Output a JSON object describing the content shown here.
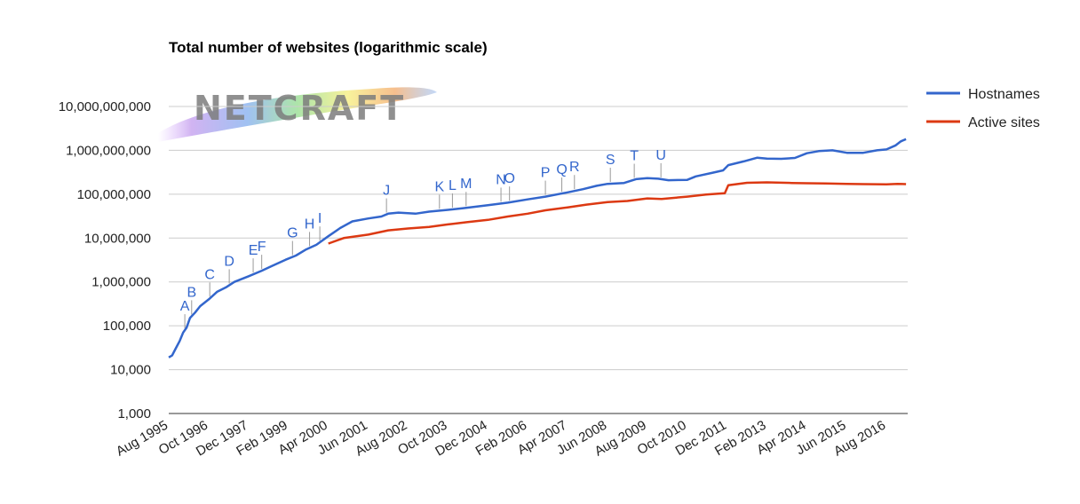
{
  "chart_data": {
    "type": "line",
    "title": "Total number of websites (logarithmic scale)",
    "scale": "log",
    "ylim": [
      1000,
      10000000000
    ],
    "y_ticks": [
      {
        "value": 1000,
        "label": "1,000"
      },
      {
        "value": 10000,
        "label": "10,000"
      },
      {
        "value": 100000,
        "label": "100,000"
      },
      {
        "value": 1000000,
        "label": "1,000,000"
      },
      {
        "value": 10000000,
        "label": "10,000,000"
      },
      {
        "value": 100000000,
        "label": "100,000,000"
      },
      {
        "value": 1000000000,
        "label": "1,000,000,000"
      },
      {
        "value": 10000000000,
        "label": "10,000,000,000"
      }
    ],
    "x_range": [
      1995.58,
      2017.2
    ],
    "x_ticks": [
      {
        "value": 1995.58,
        "label": "Aug 1995"
      },
      {
        "value": 1996.75,
        "label": "Oct 1996"
      },
      {
        "value": 1997.92,
        "label": "Dec 1997"
      },
      {
        "value": 1999.08,
        "label": "Feb 1999"
      },
      {
        "value": 2000.25,
        "label": "Apr 2000"
      },
      {
        "value": 2001.42,
        "label": "Jun 2001"
      },
      {
        "value": 2002.58,
        "label": "Aug 2002"
      },
      {
        "value": 2003.75,
        "label": "Oct 2003"
      },
      {
        "value": 2004.92,
        "label": "Dec 2004"
      },
      {
        "value": 2006.08,
        "label": "Feb 2006"
      },
      {
        "value": 2007.25,
        "label": "Apr 2007"
      },
      {
        "value": 2008.42,
        "label": "Jun 2008"
      },
      {
        "value": 2009.58,
        "label": "Aug 2009"
      },
      {
        "value": 2010.75,
        "label": "Oct 2010"
      },
      {
        "value": 2011.92,
        "label": "Dec 2011"
      },
      {
        "value": 2013.08,
        "label": "Feb 2013"
      },
      {
        "value": 2014.25,
        "label": "Apr 2014"
      },
      {
        "value": 2015.42,
        "label": "Jun 2015"
      },
      {
        "value": 2016.58,
        "label": "Aug 2016"
      }
    ],
    "grid": true,
    "legend_position": "right",
    "watermark": "NETCRAFT",
    "series": [
      {
        "name": "Hostnames",
        "color": "#3366cc",
        "points": [
          [
            1995.58,
            19000
          ],
          [
            1995.68,
            21000
          ],
          [
            1995.78,
            30000
          ],
          [
            1995.9,
            45000
          ],
          [
            1996.0,
            70000
          ],
          [
            1996.1,
            90000
          ],
          [
            1996.2,
            150000
          ],
          [
            1996.35,
            200000
          ],
          [
            1996.5,
            280000
          ],
          [
            1996.75,
            400000
          ],
          [
            1997.0,
            600000
          ],
          [
            1997.25,
            750000
          ],
          [
            1997.5,
            1000000
          ],
          [
            1997.92,
            1350000
          ],
          [
            1998.3,
            1800000
          ],
          [
            1998.6,
            2300000
          ],
          [
            1999.0,
            3200000
          ],
          [
            1999.3,
            4000000
          ],
          [
            1999.6,
            5500000
          ],
          [
            1999.9,
            7000000
          ],
          [
            2000.25,
            11000000
          ],
          [
            2000.6,
            17000000
          ],
          [
            2000.95,
            24000000
          ],
          [
            2001.42,
            28000000
          ],
          [
            2001.8,
            31000000
          ],
          [
            2002.0,
            36000000
          ],
          [
            2002.3,
            38000000
          ],
          [
            2002.8,
            36000000
          ],
          [
            2003.2,
            40000000
          ],
          [
            2003.75,
            44000000
          ],
          [
            2004.2,
            48000000
          ],
          [
            2004.92,
            56000000
          ],
          [
            2005.5,
            64000000
          ],
          [
            2006.08,
            76000000
          ],
          [
            2006.6,
            88000000
          ],
          [
            2007.25,
            110000000
          ],
          [
            2007.7,
            130000000
          ],
          [
            2008.1,
            155000000
          ],
          [
            2008.42,
            172000000
          ],
          [
            2008.9,
            180000000
          ],
          [
            2009.25,
            220000000
          ],
          [
            2009.58,
            232000000
          ],
          [
            2009.9,
            225000000
          ],
          [
            2010.2,
            208000000
          ],
          [
            2010.75,
            212000000
          ],
          [
            2011.0,
            255000000
          ],
          [
            2011.5,
            310000000
          ],
          [
            2011.8,
            350000000
          ],
          [
            2011.95,
            460000000
          ],
          [
            2012.4,
            560000000
          ],
          [
            2012.8,
            680000000
          ],
          [
            2013.08,
            650000000
          ],
          [
            2013.5,
            640000000
          ],
          [
            2013.9,
            670000000
          ],
          [
            2014.25,
            860000000
          ],
          [
            2014.6,
            960000000
          ],
          [
            2015.0,
            1000000000
          ],
          [
            2015.42,
            880000000
          ],
          [
            2015.9,
            880000000
          ],
          [
            2016.3,
            1000000000
          ],
          [
            2016.58,
            1050000000
          ],
          [
            2016.85,
            1300000000
          ],
          [
            2017.0,
            1600000000
          ],
          [
            2017.15,
            1800000000
          ]
        ]
      },
      {
        "name": "Active sites",
        "color": "#dc3912",
        "points": [
          [
            2000.25,
            7500000
          ],
          [
            2000.7,
            10000000
          ],
          [
            2001.42,
            12000000
          ],
          [
            2002.0,
            15000000
          ],
          [
            2002.58,
            16500000
          ],
          [
            2003.2,
            18000000
          ],
          [
            2003.75,
            20500000
          ],
          [
            2004.3,
            23000000
          ],
          [
            2004.92,
            26000000
          ],
          [
            2005.5,
            31000000
          ],
          [
            2006.08,
            36000000
          ],
          [
            2006.6,
            43000000
          ],
          [
            2007.25,
            50000000
          ],
          [
            2007.8,
            58000000
          ],
          [
            2008.42,
            66000000
          ],
          [
            2009.0,
            70000000
          ],
          [
            2009.58,
            80000000
          ],
          [
            2010.0,
            78000000
          ],
          [
            2010.75,
            88000000
          ],
          [
            2011.3,
            98000000
          ],
          [
            2011.85,
            105000000
          ],
          [
            2011.95,
            160000000
          ],
          [
            2012.5,
            182000000
          ],
          [
            2013.08,
            186000000
          ],
          [
            2013.8,
            180000000
          ],
          [
            2014.25,
            178000000
          ],
          [
            2014.8,
            176000000
          ],
          [
            2015.42,
            172000000
          ],
          [
            2015.9,
            170000000
          ],
          [
            2016.58,
            168000000
          ],
          [
            2016.9,
            172000000
          ],
          [
            2017.15,
            170000000
          ]
        ]
      }
    ],
    "annotations": [
      {
        "label": "A",
        "x": 1996.05
      },
      {
        "label": "B",
        "x": 1996.25
      },
      {
        "label": "C",
        "x": 1996.78
      },
      {
        "label": "D",
        "x": 1997.35
      },
      {
        "label": "E",
        "x": 1998.05
      },
      {
        "label": "F",
        "x": 1998.3
      },
      {
        "label": "G",
        "x": 1999.2
      },
      {
        "label": "H",
        "x": 1999.7
      },
      {
        "label": "I",
        "x": 2000.0
      },
      {
        "label": "J",
        "x": 2001.95
      },
      {
        "label": "K",
        "x": 2003.5
      },
      {
        "label": "L",
        "x": 2003.88
      },
      {
        "label": "M",
        "x": 2004.28
      },
      {
        "label": "N",
        "x": 2005.3
      },
      {
        "label": "O",
        "x": 2005.55
      },
      {
        "label": "P",
        "x": 2006.6
      },
      {
        "label": "Q",
        "x": 2007.08
      },
      {
        "label": "R",
        "x": 2007.45
      },
      {
        "label": "S",
        "x": 2008.5
      },
      {
        "label": "T",
        "x": 2009.2
      },
      {
        "label": "U",
        "x": 2009.98
      }
    ]
  }
}
